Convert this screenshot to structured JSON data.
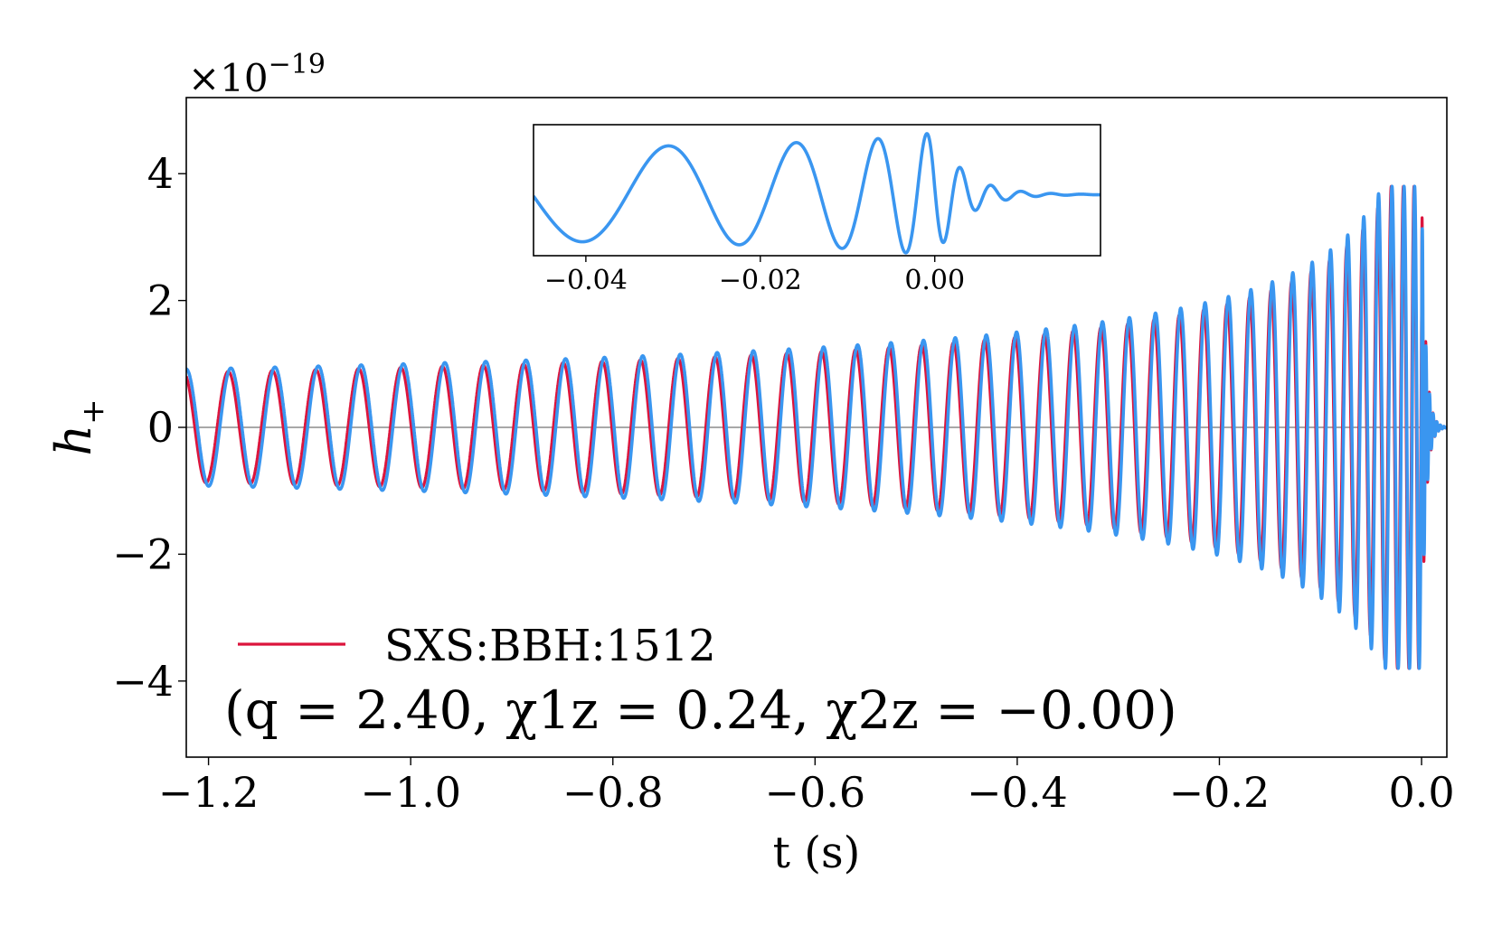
{
  "chart_data": [
    {
      "id": "main",
      "type": "line",
      "xlabel": "t (s)",
      "ylabel": "h",
      "ylabel_subscript": "+",
      "offset_text": "×10",
      "offset_exponent": "−19",
      "xlim": [
        -1.222,
        0.025
      ],
      "ylim": [
        -5.2,
        5.2
      ],
      "xticks": [
        -1.2,
        -1.0,
        -0.8,
        -0.6,
        -0.4,
        -0.2,
        0.0
      ],
      "xtick_labels": [
        "−1.2",
        "−1.0",
        "−0.8",
        "−0.6",
        "−0.4",
        "−0.2",
        "0.0"
      ],
      "yticks": [
        -4,
        -2,
        0,
        2,
        4
      ],
      "ytick_labels": [
        "−4",
        "−2",
        "0",
        "2",
        "4"
      ],
      "zero_line": true,
      "grid": false,
      "legend_position": "lower-left",
      "legend_entry": "SXS:BBH:1512",
      "legend_params": "(q = 2.40, χ1z = 0.24, χ2z = −0.00)",
      "series": [
        {
          "name": "SXS:BBH:1512",
          "color": "#dc143c",
          "waveform": {
            "t_merger": 0.0,
            "f_start_hz": 22.5,
            "amp_start": 0.87,
            "amp_peak": 3.8,
            "ringdown_tau_s": 0.004,
            "phase_offset": 0.06
          }
        },
        {
          "color": "#3a96f0",
          "waveform": {
            "t_merger": 0.0,
            "f_start_hz": 22.5,
            "amp_start": 0.92,
            "amp_peak": 3.8,
            "ringdown_tau_s": 0.004,
            "phase_offset": 0.0
          }
        }
      ]
    },
    {
      "id": "inset",
      "type": "line",
      "xlim": [
        -0.046,
        0.019
      ],
      "ylim": [
        -4.2,
        4.8
      ],
      "xticks": [
        -0.04,
        -0.02,
        0.0
      ],
      "xtick_labels": [
        "−0.04",
        "−0.02",
        "0.00"
      ],
      "series": [
        {
          "color": "#3a96f0"
        }
      ]
    }
  ]
}
